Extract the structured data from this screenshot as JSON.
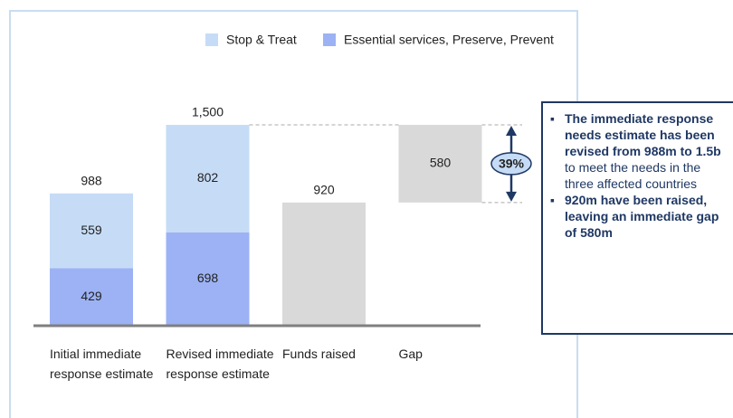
{
  "chart_data": {
    "type": "waterfall",
    "categories": [
      "Initial immediate response estimate",
      "Revised immediate response estimate",
      "Funds raised",
      "Gap"
    ],
    "series": [
      {
        "name": "Stop & Treat",
        "color": "#c6dcf6",
        "values": [
          559,
          802,
          null,
          null
        ]
      },
      {
        "name": "Essential services, Preserve, Prevent",
        "color": "#9cb2f4",
        "values": [
          429,
          698,
          null,
          null
        ]
      }
    ],
    "gray": {
      "color": "#d9d9d9",
      "values": [
        null,
        null,
        920,
        580
      ],
      "labels_inside": [
        false,
        false,
        false,
        true
      ]
    },
    "totals": [
      988,
      1500,
      920,
      null
    ],
    "value_labels": [
      "988",
      "1,500",
      "920",
      null
    ],
    "annotation": "39%",
    "notes": [
      [
        {
          "text": "The immediate response needs estimate has been revised from 988m to 1.5b",
          "bold": true
        },
        {
          "text": " to meet the needs in the three affected countries",
          "bold": false
        }
      ],
      [
        {
          "text": "920m have been raised, leaving an immediate gap of 580m",
          "bold": true
        }
      ]
    ]
  }
}
